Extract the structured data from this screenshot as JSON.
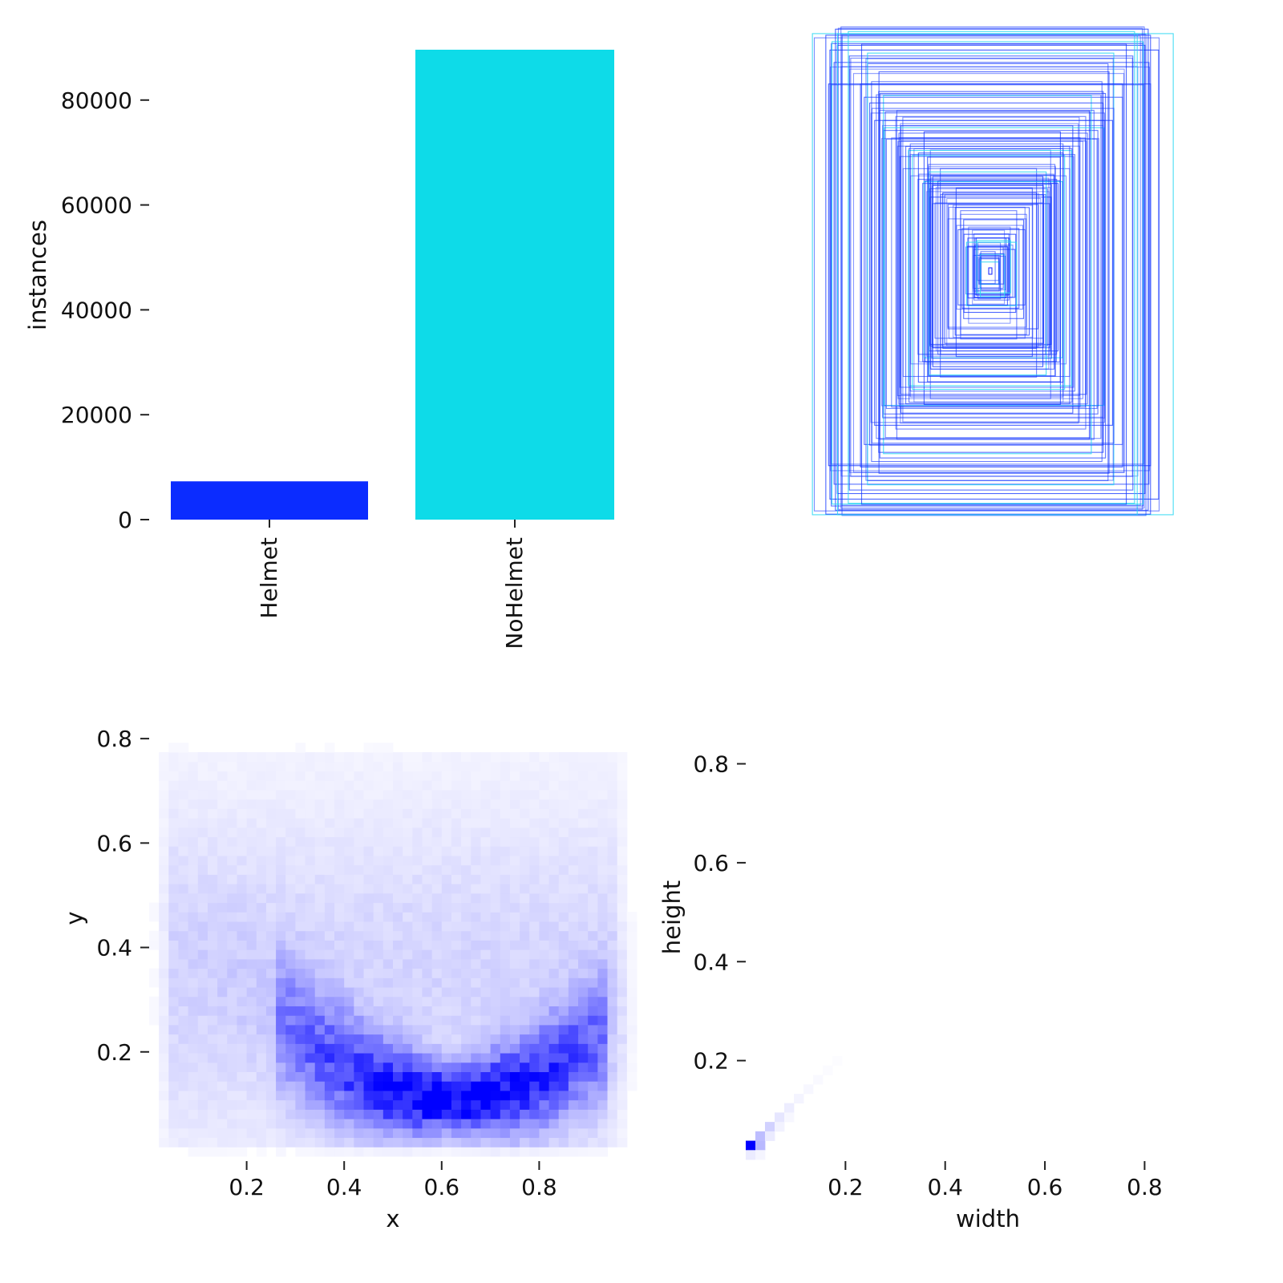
{
  "chart_data": [
    {
      "type": "bar",
      "categories": [
        "Helmet",
        "NoHelmet"
      ],
      "values": [
        7300,
        89600
      ],
      "colors": [
        "#0b2cff",
        "#0edbe8"
      ],
      "title": "",
      "xlabel": "",
      "ylabel": "instances",
      "ylim": [
        0,
        89600
      ],
      "yticks": [
        0,
        20000,
        40000,
        60000,
        80000
      ],
      "ytick_labels": [
        "0",
        "20000",
        "40000",
        "60000",
        "80000"
      ],
      "grid": false
    },
    {
      "type": "box_overlay",
      "title": "",
      "xlabel": "",
      "ylabel": "",
      "axes_visible": false,
      "colors": [
        "#1638ff",
        "#29d7f2"
      ]
    },
    {
      "type": "heatmap",
      "title": "",
      "xlabel": "x",
      "ylabel": "y",
      "xlim": [
        0.0,
        1.0
      ],
      "ylim": [
        0.0,
        0.9
      ],
      "xticks": [
        0.2,
        0.4,
        0.6,
        0.8
      ],
      "xtick_labels": [
        "0.2",
        "0.4",
        "0.6",
        "0.8"
      ],
      "yticks": [
        0.2,
        0.4,
        0.6,
        0.8
      ],
      "ytick_labels": [
        "0.2",
        "0.4",
        "0.6",
        "0.8"
      ],
      "bins": [
        50,
        50
      ],
      "colormap": "white-blue",
      "peak_color": "#0000ff"
    },
    {
      "type": "heatmap",
      "title": "",
      "xlabel": "width",
      "ylabel": "height",
      "xlim": [
        0.0,
        0.8
      ],
      "ylim": [
        0.0,
        0.8
      ],
      "xticks": [
        0.2,
        0.4,
        0.6,
        0.8
      ],
      "xtick_labels": [
        "0.2",
        "0.4",
        "0.6",
        "0.8"
      ],
      "yticks": [
        0.2,
        0.4,
        0.6,
        0.8
      ],
      "ytick_labels": [
        "0.2",
        "0.4",
        "0.6",
        "0.8"
      ],
      "bins": [
        50,
        50
      ],
      "colormap": "white-blue",
      "peak_color": "#0000ff"
    }
  ]
}
